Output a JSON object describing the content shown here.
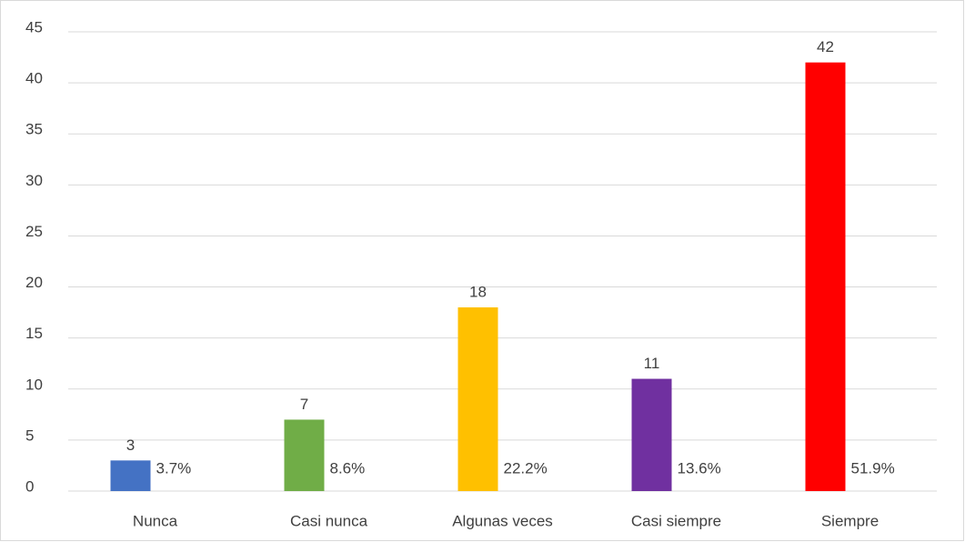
{
  "chart_data": {
    "type": "bar",
    "categories": [
      "Nunca",
      "Casi nunca",
      "Algunas veces",
      "Casi siempre",
      "Siempre"
    ],
    "values": [
      3,
      7,
      18,
      11,
      42
    ],
    "colors": [
      "#4472c4",
      "#70ad47",
      "#ffc000",
      "#7030a0",
      "#ff0000"
    ],
    "percentages": [
      3.7,
      8.6,
      22.2,
      13.6,
      51.9
    ],
    "percentage_labels": [
      "3.7%",
      "8.6%",
      "22.2%",
      "13.6%",
      "51.9%"
    ],
    "ylim": [
      0,
      45
    ],
    "yticks": [
      0,
      5,
      10,
      15,
      20,
      25,
      30,
      35,
      40,
      45
    ],
    "grid": true
  }
}
